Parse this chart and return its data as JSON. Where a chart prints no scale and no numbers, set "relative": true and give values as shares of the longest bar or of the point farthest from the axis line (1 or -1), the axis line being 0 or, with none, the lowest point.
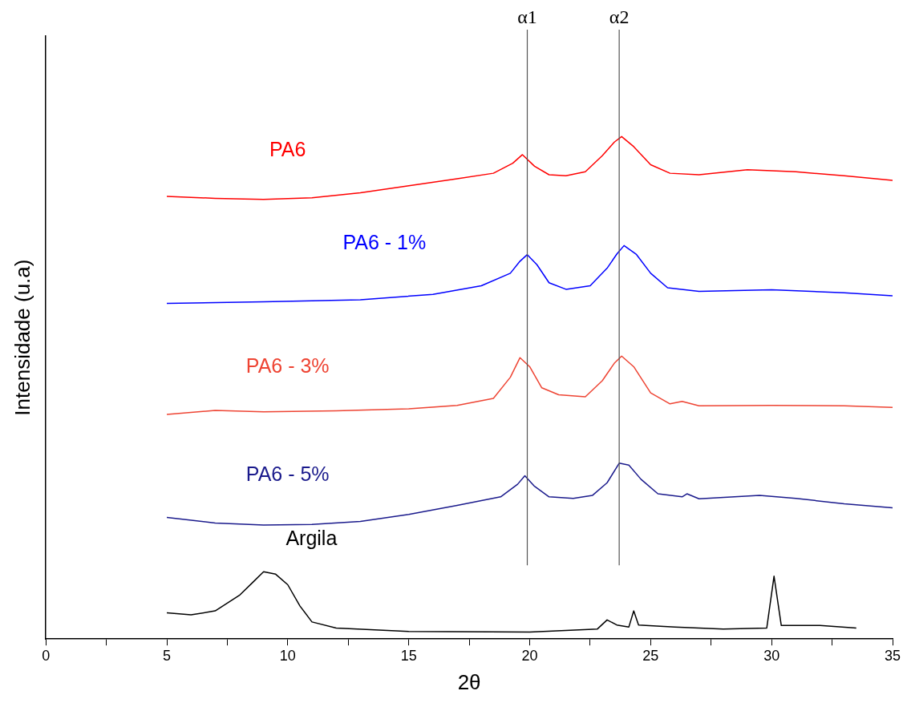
{
  "chart_data": {
    "type": "line",
    "relative": true,
    "xlabel": "2θ",
    "ylabel": "Intensidade (u.a)",
    "xlim": [
      0,
      35
    ],
    "xticks": [
      0,
      {
        "value": 2.5,
        "label": null
      },
      5,
      {
        "value": 7.5,
        "label": null
      },
      10,
      {
        "value": 12.5,
        "label": null
      },
      15,
      {
        "value": 17.5,
        "label": null
      },
      20,
      {
        "value": 22.5,
        "label": null
      },
      25,
      {
        "value": 27.5,
        "label": null
      },
      30,
      {
        "value": 32.5,
        "label": null
      },
      35
    ],
    "tick_labels": "x",
    "grid": false,
    "legend": false,
    "marker": "none",
    "line_style": "solid",
    "ref_lines": [
      {
        "axis": "x",
        "value": 19.9,
        "label": "α1",
        "color": "#555555"
      },
      {
        "axis": "x",
        "value": 23.7,
        "label": "α2",
        "color": "#555555"
      }
    ],
    "series": [
      {
        "name": "PA6",
        "color": "#ff0000",
        "x": [
          5,
          7,
          9,
          11,
          13,
          15,
          17,
          18.5,
          19.3,
          19.7,
          20.2,
          20.8,
          21.5,
          22.3,
          23,
          23.5,
          23.8,
          24.3,
          25,
          25.8,
          27,
          29,
          31,
          33,
          35
        ],
        "values": [
          0.881,
          0.877,
          0.875,
          0.878,
          0.888,
          0.902,
          0.916,
          0.927,
          0.947,
          0.964,
          0.941,
          0.924,
          0.922,
          0.93,
          0.962,
          0.989,
          1.0,
          0.98,
          0.944,
          0.927,
          0.924,
          0.934,
          0.93,
          0.922,
          0.913
        ]
      },
      {
        "name": "PA6 - 1%",
        "color": "#0000ff",
        "x": [
          5,
          9,
          13,
          16,
          18,
          19.2,
          19.6,
          19.9,
          20.3,
          20.8,
          21.5,
          22.5,
          23.2,
          23.6,
          23.9,
          24.4,
          25,
          25.7,
          27,
          30,
          33,
          35
        ],
        "values": [
          0.668,
          0.671,
          0.675,
          0.686,
          0.703,
          0.728,
          0.752,
          0.765,
          0.745,
          0.709,
          0.696,
          0.703,
          0.738,
          0.766,
          0.783,
          0.766,
          0.728,
          0.699,
          0.692,
          0.695,
          0.689,
          0.683
        ]
      },
      {
        "name": "PA6 - 3%",
        "color": "#ee4433",
        "x": [
          5,
          7,
          9,
          12,
          15,
          17,
          18.5,
          19.2,
          19.6,
          20,
          20.5,
          21.2,
          22.3,
          23,
          23.5,
          23.8,
          24.3,
          25,
          25.8,
          26.3,
          27,
          30,
          33,
          35
        ],
        "values": [
          0.447,
          0.455,
          0.452,
          0.454,
          0.458,
          0.465,
          0.479,
          0.521,
          0.56,
          0.542,
          0.5,
          0.486,
          0.482,
          0.514,
          0.549,
          0.563,
          0.542,
          0.49,
          0.468,
          0.473,
          0.464,
          0.465,
          0.464,
          0.461
        ]
      },
      {
        "name": "PA6 - 5%",
        "color": "#1a1a8c",
        "x": [
          5,
          7,
          9,
          11,
          13,
          15,
          17,
          18.8,
          19.5,
          19.8,
          20.2,
          20.8,
          21.8,
          22.6,
          23.2,
          23.7,
          24.1,
          24.6,
          25.3,
          26.3,
          26.5,
          27,
          29.5,
          31,
          33,
          35
        ],
        "values": [
          0.242,
          0.231,
          0.227,
          0.228,
          0.234,
          0.248,
          0.266,
          0.283,
          0.308,
          0.325,
          0.304,
          0.283,
          0.28,
          0.286,
          0.311,
          0.35,
          0.346,
          0.318,
          0.289,
          0.283,
          0.289,
          0.279,
          0.286,
          0.28,
          0.269,
          0.261
        ]
      },
      {
        "name": "Argila",
        "color": "#000000",
        "x": [
          5,
          6,
          7,
          8,
          8.6,
          9,
          9.5,
          10,
          10.5,
          11,
          12,
          15,
          20,
          22.8,
          23.2,
          23.6,
          24.1,
          24.3,
          24.5,
          26,
          28,
          29.8,
          30.1,
          30.4,
          32,
          33.5
        ],
        "values": [
          0.052,
          0.048,
          0.056,
          0.087,
          0.115,
          0.134,
          0.129,
          0.108,
          0.066,
          0.034,
          0.022,
          0.015,
          0.014,
          0.02,
          0.038,
          0.028,
          0.024,
          0.056,
          0.028,
          0.024,
          0.02,
          0.022,
          0.125,
          0.027,
          0.027,
          0.022
        ]
      }
    ]
  }
}
